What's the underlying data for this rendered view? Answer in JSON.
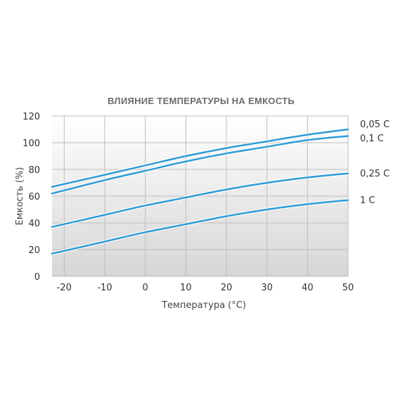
{
  "chart_data": {
    "type": "line",
    "title": "ВЛИЯНИЕ ТЕМПЕРАТУРЫ НА ЕМКОСТЬ",
    "xlabel": "Температура (°С)",
    "ylabel": "Емкость (%)",
    "xlim": [
      -23,
      50
    ],
    "ylim": [
      0,
      120
    ],
    "xticks": [
      -20,
      -10,
      0,
      10,
      20,
      30,
      40,
      50
    ],
    "xtick_labels": [
      "-20",
      "-10",
      "0",
      "10",
      "20",
      "30",
      "40",
      "50"
    ],
    "yticks": [
      0,
      20,
      40,
      60,
      80,
      100,
      120
    ],
    "ytick_labels": [
      "0",
      "20",
      "40",
      "60",
      "80",
      "100",
      "120"
    ],
    "grid": true,
    "legend_position": "right",
    "colors": {
      "line": "#2e9bd6",
      "grid": "#bdbdbd",
      "plot_top": "#ffffff",
      "plot_bottom": "#d6d6d6"
    },
    "series": [
      {
        "name": "0,05 С",
        "x": [
          -23,
          -10,
          0,
          10,
          20,
          30,
          40,
          50
        ],
        "values": [
          67,
          76,
          83,
          90,
          96,
          101,
          106,
          110
        ]
      },
      {
        "name": "0,1 С",
        "x": [
          -23,
          -10,
          0,
          10,
          20,
          30,
          40,
          50
        ],
        "values": [
          62,
          72,
          79,
          86,
          92,
          97,
          102,
          105
        ]
      },
      {
        "name": "0,25 С",
        "x": [
          -23,
          -10,
          0,
          10,
          20,
          30,
          40,
          50
        ],
        "values": [
          37,
          46,
          53,
          59,
          65,
          70,
          74,
          77
        ]
      },
      {
        "name": "1 С",
        "x": [
          -23,
          -10,
          0,
          10,
          20,
          30,
          40,
          50
        ],
        "values": [
          17,
          26,
          33,
          39,
          45,
          50,
          54,
          57
        ]
      }
    ]
  }
}
